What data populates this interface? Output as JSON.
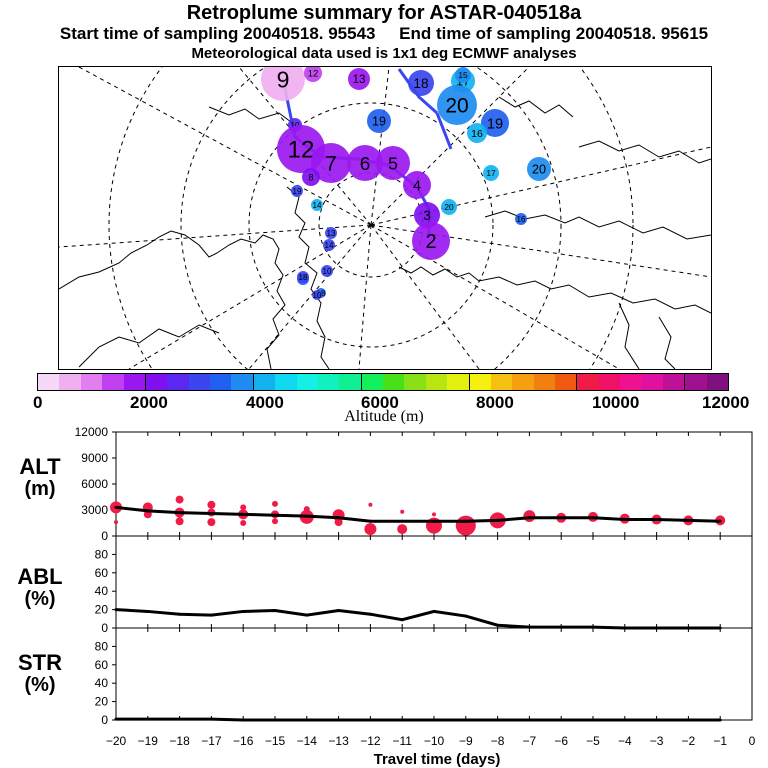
{
  "header": {
    "title": "Retroplume summary for ASTAR-040518a",
    "subtitle_start": "Start time of sampling 20040518. 95543",
    "subtitle_end": "End time of sampling 20040518. 95615",
    "met_note": "Meteorological data used is 1x1 deg ECMWF analyses"
  },
  "colorbar": {
    "colors": [
      "#f7d9f7",
      "#f0b0f0",
      "#e37ef0",
      "#c040f0",
      "#9a18f0",
      "#8010f0",
      "#5a28f0",
      "#3b46f0",
      "#2060f0",
      "#1e8cf0",
      "#12b2f0",
      "#10d8f0",
      "#14f0e6",
      "#12f0c0",
      "#10f090",
      "#14f05c",
      "#48e018",
      "#8ae018",
      "#b8e610",
      "#e4f010",
      "#f6f010",
      "#f6c010",
      "#f6a010",
      "#f08010",
      "#f05a10",
      "#f01c48",
      "#f01068",
      "#f01090",
      "#e010a0",
      "#c01098",
      "#a01090",
      "#801080"
    ],
    "tick_labels": [
      "0",
      "2000",
      "4000",
      "6000",
      "8000",
      "10000",
      "12000"
    ],
    "axis_label": "Altitude (m)"
  },
  "map": {
    "plumes": [
      {
        "label": "9",
        "color": "#f0b0f0",
        "size": 22
      },
      {
        "label": "12",
        "color": "#c040f0",
        "size": 9
      },
      {
        "label": "13",
        "color": "#9a18f0",
        "size": 11
      },
      {
        "label": "18",
        "color": "#3b46f0",
        "size": 13
      },
      {
        "label": "17",
        "color": "#12b2f0",
        "size": 12
      },
      {
        "label": "20",
        "color": "#1e8cf0",
        "size": 20
      },
      {
        "label": "15",
        "color": "#1e8cf0",
        "size": 8
      },
      {
        "label": "19",
        "color": "#2060f0",
        "size": 12
      },
      {
        "label": "19",
        "color": "#2060f0",
        "size": 14
      },
      {
        "label": "16",
        "color": "#12b2f0",
        "size": 10
      },
      {
        "label": "10",
        "color": "#5a28f0",
        "size": 7
      },
      {
        "label": "12",
        "color": "#9a18f0",
        "size": 24
      },
      {
        "label": "7",
        "color": "#9a18f0",
        "size": 20
      },
      {
        "label": "6",
        "color": "#9a18f0",
        "size": 18
      },
      {
        "label": "5",
        "color": "#9a18f0",
        "size": 17
      },
      {
        "label": "8",
        "color": "#8010f0",
        "size": 9
      },
      {
        "label": "4",
        "color": "#9a18f0",
        "size": 14
      },
      {
        "label": "3",
        "color": "#8010f0",
        "size": 13
      },
      {
        "label": "2",
        "color": "#9a18f0",
        "size": 19
      },
      {
        "label": "20",
        "color": "#12b2f0",
        "size": 8
      },
      {
        "label": "17",
        "color": "#12b2f0",
        "size": 8
      },
      {
        "label": "20",
        "color": "#1e8cf0",
        "size": 12
      },
      {
        "label": "19",
        "color": "#3b46f0",
        "size": 6
      },
      {
        "label": "14",
        "color": "#12b2f0",
        "size": 6
      },
      {
        "label": "16",
        "color": "#2060f0",
        "size": 6
      },
      {
        "label": "13",
        "color": "#3b46f0",
        "size": 6
      },
      {
        "label": "14",
        "color": "#3b46f0",
        "size": 6
      },
      {
        "label": "10",
        "color": "#3b46f0",
        "size": 6
      },
      {
        "label": "11",
        "color": "#2060f0",
        "size": 6
      },
      {
        "label": "18",
        "color": "#3b46f0",
        "size": 6
      },
      {
        "label": "18",
        "color": "#2060f0",
        "size": 5
      },
      {
        "label": "10",
        "color": "#3b46f0",
        "size": 5
      }
    ]
  },
  "panels": {
    "alt": {
      "label": "ALT",
      "unit": "(m)"
    },
    "abl": {
      "label": "ABL",
      "unit": "(%)"
    },
    "str": {
      "label": "STR",
      "unit": "(%)"
    }
  },
  "chart_data": [
    {
      "type": "line",
      "name": "ALT",
      "ylabel": "ALT (m)",
      "xlabel": "Travel time (days)",
      "xlim": [
        -20,
        0
      ],
      "ylim": [
        0,
        12000
      ],
      "yticks": [
        0,
        3000,
        6000,
        9000,
        12000
      ],
      "x": [
        -20,
        -19,
        -18,
        -17,
        -16,
        -15,
        -14,
        -13,
        -12,
        -11,
        -10,
        -9,
        -8,
        -7,
        -6,
        -5,
        -4,
        -3,
        -2,
        -1
      ],
      "values": [
        3300,
        2900,
        2700,
        2600,
        2500,
        2400,
        2300,
        2100,
        1700,
        1700,
        1700,
        1700,
        1800,
        2100,
        2100,
        2100,
        1900,
        1900,
        1800,
        1700
      ],
      "spread_points": [
        {
          "x": -20,
          "y": 3300,
          "s": 6
        },
        {
          "x": -20,
          "y": 1600,
          "s": 2
        },
        {
          "x": -19,
          "y": 3300,
          "s": 5
        },
        {
          "x": -19,
          "y": 2500,
          "s": 4
        },
        {
          "x": -18,
          "y": 4200,
          "s": 4
        },
        {
          "x": -18,
          "y": 2700,
          "s": 5
        },
        {
          "x": -18,
          "y": 1700,
          "s": 4
        },
        {
          "x": -17,
          "y": 3600,
          "s": 4
        },
        {
          "x": -17,
          "y": 2700,
          "s": 4
        },
        {
          "x": -17,
          "y": 1600,
          "s": 4
        },
        {
          "x": -16,
          "y": 3300,
          "s": 3
        },
        {
          "x": -16,
          "y": 2500,
          "s": 5
        },
        {
          "x": -16,
          "y": 1500,
          "s": 3
        },
        {
          "x": -15,
          "y": 3700,
          "s": 3
        },
        {
          "x": -15,
          "y": 2500,
          "s": 4
        },
        {
          "x": -15,
          "y": 1700,
          "s": 3
        },
        {
          "x": -14,
          "y": 3100,
          "s": 3
        },
        {
          "x": -14,
          "y": 2200,
          "s": 7
        },
        {
          "x": -13,
          "y": 2400,
          "s": 6
        },
        {
          "x": -13,
          "y": 1600,
          "s": 4
        },
        {
          "x": -12,
          "y": 3600,
          "s": 2
        },
        {
          "x": -12,
          "y": 800,
          "s": 6
        },
        {
          "x": -11,
          "y": 2800,
          "s": 2
        },
        {
          "x": -11,
          "y": 800,
          "s": 5
        },
        {
          "x": -10,
          "y": 1200,
          "s": 8
        },
        {
          "x": -10,
          "y": 2500,
          "s": 2
        },
        {
          "x": -9,
          "y": 1200,
          "s": 10
        },
        {
          "x": -8,
          "y": 1800,
          "s": 8
        },
        {
          "x": -7,
          "y": 2300,
          "s": 6
        },
        {
          "x": -6,
          "y": 2100,
          "s": 5
        },
        {
          "x": -5,
          "y": 2200,
          "s": 5
        },
        {
          "x": -4,
          "y": 2000,
          "s": 5
        },
        {
          "x": -3,
          "y": 1900,
          "s": 5
        },
        {
          "x": -2,
          "y": 1800,
          "s": 5
        },
        {
          "x": -1,
          "y": 1800,
          "s": 5
        }
      ]
    },
    {
      "type": "line",
      "name": "ABL",
      "ylabel": "ABL (%)",
      "xlabel": "Travel time (days)",
      "xlim": [
        -20,
        0
      ],
      "ylim": [
        0,
        100
      ],
      "yticks": [
        0,
        20,
        40,
        60,
        80
      ],
      "x": [
        -20,
        -19,
        -18,
        -17,
        -16,
        -15,
        -14,
        -13,
        -12,
        -11,
        -10,
        -9,
        -8,
        -7,
        -6,
        -5,
        -4,
        -3,
        -2,
        -1
      ],
      "values": [
        20,
        18,
        15,
        14,
        18,
        19,
        14,
        19,
        15,
        9,
        18,
        13,
        3,
        1,
        1,
        1,
        0,
        0,
        0,
        0
      ]
    },
    {
      "type": "line",
      "name": "STR",
      "ylabel": "STR (%)",
      "xlabel": "Travel time (days)",
      "xlim": [
        -20,
        0
      ],
      "ylim": [
        0,
        100
      ],
      "yticks": [
        0,
        20,
        40,
        60,
        80
      ],
      "x": [
        -20,
        -19,
        -18,
        -17,
        -16,
        -15,
        -14,
        -13,
        -12,
        -11,
        -10,
        -9,
        -8,
        -7,
        -6,
        -5,
        -4,
        -3,
        -2,
        -1
      ],
      "values": [
        1,
        1,
        1,
        1,
        0,
        0,
        0,
        0,
        0,
        0,
        0,
        0,
        0,
        0,
        0,
        0,
        0,
        0,
        0,
        0
      ],
      "xticks": [
        "-20",
        "-19",
        "-18",
        "-17",
        "-16",
        "-15",
        "-14",
        "-13",
        "-12",
        "-11",
        "-10",
        "-9",
        "-8",
        "-7",
        "-6",
        "-5",
        "-4",
        "-3",
        "-2",
        "-1",
        "0"
      ]
    }
  ],
  "xaxis": {
    "label": "Travel time (days)"
  }
}
